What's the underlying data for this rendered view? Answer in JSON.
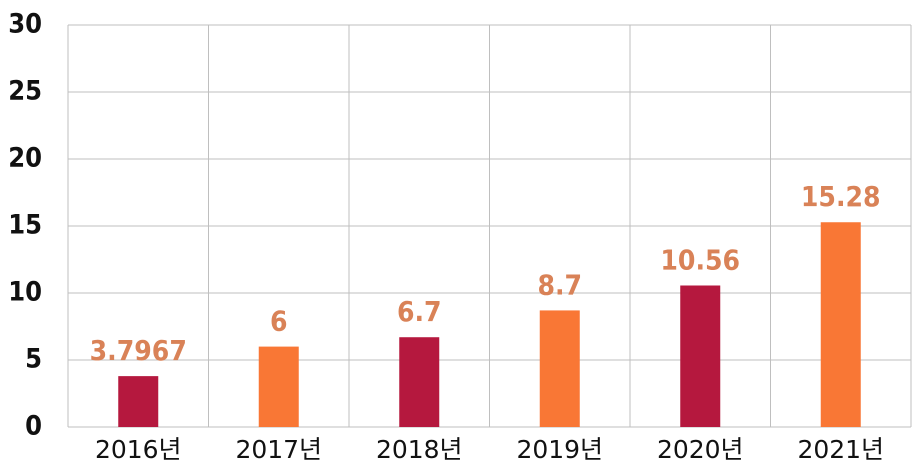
{
  "chart_data": {
    "type": "bar",
    "categories": [
      "2016년",
      "2017년",
      "2018년",
      "2019년",
      "2020년",
      "2021년"
    ],
    "values": [
      3.7967,
      6,
      6.7,
      8.7,
      10.56,
      15.28
    ],
    "colors": [
      "#b5183e",
      "#f97735",
      "#b5183e",
      "#f97735",
      "#b5183e",
      "#f97735"
    ],
    "label_color": "#d98257",
    "ylim": [
      0,
      30
    ],
    "yticks": [
      0,
      5,
      10,
      15,
      20,
      25,
      30
    ],
    "grid": true
  }
}
